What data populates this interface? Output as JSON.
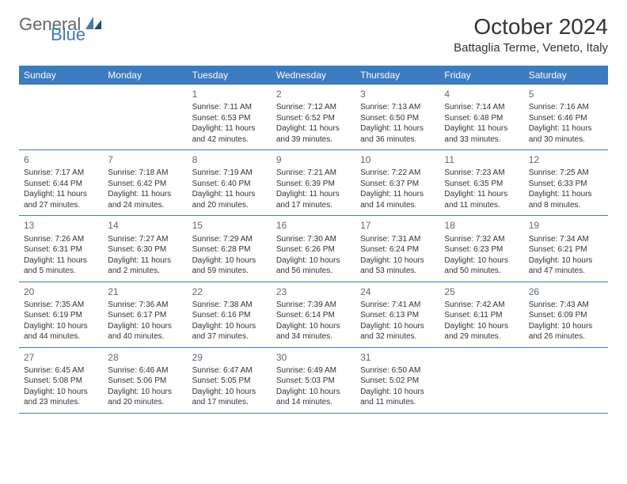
{
  "logo": {
    "gray": "General",
    "blue": "Blue"
  },
  "title": "October 2024",
  "location": "Battaglia Terme, Veneto, Italy",
  "colors": {
    "header_bg": "#3b7bbf",
    "header_text": "#ffffff",
    "day_num": "#5a6a78",
    "text": "#333333",
    "logo_gray": "#666666",
    "logo_blue": "#3b7bbf",
    "divider": "#3b7bbf"
  },
  "day_names": [
    "Sunday",
    "Monday",
    "Tuesday",
    "Wednesday",
    "Thursday",
    "Friday",
    "Saturday"
  ],
  "weeks": [
    [
      {},
      {},
      {
        "n": "1",
        "sr": "7:11 AM",
        "ss": "6:53 PM",
        "dl": "11 hours and 42 minutes."
      },
      {
        "n": "2",
        "sr": "7:12 AM",
        "ss": "6:52 PM",
        "dl": "11 hours and 39 minutes."
      },
      {
        "n": "3",
        "sr": "7:13 AM",
        "ss": "6:50 PM",
        "dl": "11 hours and 36 minutes."
      },
      {
        "n": "4",
        "sr": "7:14 AM",
        "ss": "6:48 PM",
        "dl": "11 hours and 33 minutes."
      },
      {
        "n": "5",
        "sr": "7:16 AM",
        "ss": "6:46 PM",
        "dl": "11 hours and 30 minutes."
      }
    ],
    [
      {
        "n": "6",
        "sr": "7:17 AM",
        "ss": "6:44 PM",
        "dl": "11 hours and 27 minutes."
      },
      {
        "n": "7",
        "sr": "7:18 AM",
        "ss": "6:42 PM",
        "dl": "11 hours and 24 minutes."
      },
      {
        "n": "8",
        "sr": "7:19 AM",
        "ss": "6:40 PM",
        "dl": "11 hours and 20 minutes."
      },
      {
        "n": "9",
        "sr": "7:21 AM",
        "ss": "6:39 PM",
        "dl": "11 hours and 17 minutes."
      },
      {
        "n": "10",
        "sr": "7:22 AM",
        "ss": "6:37 PM",
        "dl": "11 hours and 14 minutes."
      },
      {
        "n": "11",
        "sr": "7:23 AM",
        "ss": "6:35 PM",
        "dl": "11 hours and 11 minutes."
      },
      {
        "n": "12",
        "sr": "7:25 AM",
        "ss": "6:33 PM",
        "dl": "11 hours and 8 minutes."
      }
    ],
    [
      {
        "n": "13",
        "sr": "7:26 AM",
        "ss": "6:31 PM",
        "dl": "11 hours and 5 minutes."
      },
      {
        "n": "14",
        "sr": "7:27 AM",
        "ss": "6:30 PM",
        "dl": "11 hours and 2 minutes."
      },
      {
        "n": "15",
        "sr": "7:29 AM",
        "ss": "6:28 PM",
        "dl": "10 hours and 59 minutes."
      },
      {
        "n": "16",
        "sr": "7:30 AM",
        "ss": "6:26 PM",
        "dl": "10 hours and 56 minutes."
      },
      {
        "n": "17",
        "sr": "7:31 AM",
        "ss": "6:24 PM",
        "dl": "10 hours and 53 minutes."
      },
      {
        "n": "18",
        "sr": "7:32 AM",
        "ss": "6:23 PM",
        "dl": "10 hours and 50 minutes."
      },
      {
        "n": "19",
        "sr": "7:34 AM",
        "ss": "6:21 PM",
        "dl": "10 hours and 47 minutes."
      }
    ],
    [
      {
        "n": "20",
        "sr": "7:35 AM",
        "ss": "6:19 PM",
        "dl": "10 hours and 44 minutes."
      },
      {
        "n": "21",
        "sr": "7:36 AM",
        "ss": "6:17 PM",
        "dl": "10 hours and 40 minutes."
      },
      {
        "n": "22",
        "sr": "7:38 AM",
        "ss": "6:16 PM",
        "dl": "10 hours and 37 minutes."
      },
      {
        "n": "23",
        "sr": "7:39 AM",
        "ss": "6:14 PM",
        "dl": "10 hours and 34 minutes."
      },
      {
        "n": "24",
        "sr": "7:41 AM",
        "ss": "6:13 PM",
        "dl": "10 hours and 32 minutes."
      },
      {
        "n": "25",
        "sr": "7:42 AM",
        "ss": "6:11 PM",
        "dl": "10 hours and 29 minutes."
      },
      {
        "n": "26",
        "sr": "7:43 AM",
        "ss": "6:09 PM",
        "dl": "10 hours and 26 minutes."
      }
    ],
    [
      {
        "n": "27",
        "sr": "6:45 AM",
        "ss": "5:08 PM",
        "dl": "10 hours and 23 minutes."
      },
      {
        "n": "28",
        "sr": "6:46 AM",
        "ss": "5:06 PM",
        "dl": "10 hours and 20 minutes."
      },
      {
        "n": "29",
        "sr": "6:47 AM",
        "ss": "5:05 PM",
        "dl": "10 hours and 17 minutes."
      },
      {
        "n": "30",
        "sr": "6:49 AM",
        "ss": "5:03 PM",
        "dl": "10 hours and 14 minutes."
      },
      {
        "n": "31",
        "sr": "6:50 AM",
        "ss": "5:02 PM",
        "dl": "10 hours and 11 minutes."
      },
      {},
      {}
    ]
  ],
  "labels": {
    "sunrise": "Sunrise:",
    "sunset": "Sunset:",
    "daylight": "Daylight:"
  }
}
